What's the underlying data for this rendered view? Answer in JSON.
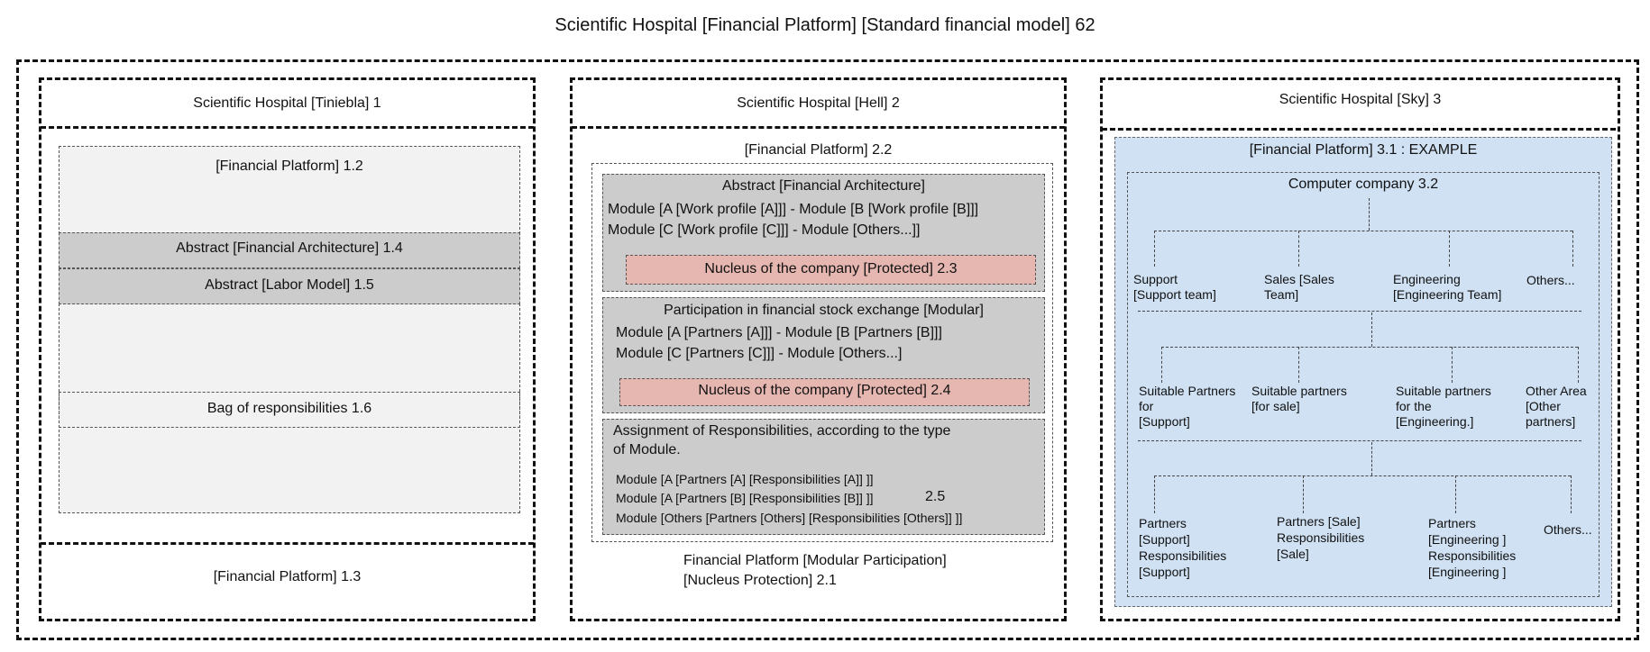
{
  "title": "Scientific Hospital [Financial Platform] [Standard financial model] 62",
  "panel1": {
    "header": "Scientific Hospital [Tiniebla] 1",
    "financial_platform": "[Financial Platform] 1.2",
    "abstract_fin_arch": "Abstract [Financial Architecture] 1.4",
    "abstract_labor": "Abstract [Labor Model] 1.5",
    "bag": "Bag of responsibilities 1.6",
    "footer": "[Financial Platform] 1.3"
  },
  "panel2": {
    "header": "Scientific Hospital [Hell] 2",
    "platform_label": "[Financial Platform] 2.2",
    "box1": {
      "title": "Abstract [Financial Architecture]",
      "line1": "Module [A [Work profile [A]]] -  Module [B [Work profile [B]]]",
      "line2": "Module [C [Work profile [C]]] -  Module [Others...]]",
      "nucleus": "Nucleus of the company [Protected] 2.3"
    },
    "box2": {
      "title": "Participation in financial stock exchange [Modular]",
      "line1": "Module [A [Partners [A]]] -  Module [B [Partners [B]]]",
      "line2": "Module [C [Partners [C]]] -  Module [Others...]",
      "nucleus": "Nucleus of the company [Protected] 2.4"
    },
    "box3": {
      "title1": "Assignment of Responsibilities, according to the type",
      "title2": " of Module.",
      "line1": "Module [A [Partners [A] [Responsibilities [A]] ]]",
      "line2": "Module [A [Partners [B] [Responsibilities [B]] ]]",
      "num": "2.5",
      "line3": "Module [Others [Partners [Others] [Responsibilities [Others]] ]]"
    },
    "footer1": "Financial Platform [Modular Participation]",
    "footer2": "[Nucleus Protection] 2.1"
  },
  "panel3": {
    "header": "Scientific Hospital [Sky] 3",
    "example_label": "[Financial Platform] 3.1 : EXAMPLE",
    "company": "Computer company 3.2",
    "row1": [
      [
        "Support",
        "[Support team]"
      ],
      [
        "Sales [Sales",
        "Team]"
      ],
      [
        "Engineering",
        "[Engineering Team]"
      ],
      [
        "Others..."
      ]
    ],
    "row2": [
      [
        "Suitable Partners",
        "for",
        "[Support]"
      ],
      [
        "Suitable partners",
        "[for sale]"
      ],
      [
        "Suitable partners",
        "for the",
        "[Engineering.]"
      ],
      [
        "Other Area",
        "[Other",
        "partners]"
      ]
    ],
    "row3": [
      [
        "Partners",
        "[Support]",
        "Responsibilities",
        "[Support]"
      ],
      [
        "Partners [Sale]",
        "Responsibilities",
        "[Sale]"
      ],
      [
        "Partners",
        "[Engineering ]",
        "Responsibilities",
        "[Engineering ]"
      ],
      [
        "Others..."
      ]
    ]
  },
  "colors": {
    "gray_box": "#cccccc",
    "light_box": "#f2f2f2",
    "nucleus": "#e6b6b0",
    "example_bg": "#cfe1f3"
  }
}
